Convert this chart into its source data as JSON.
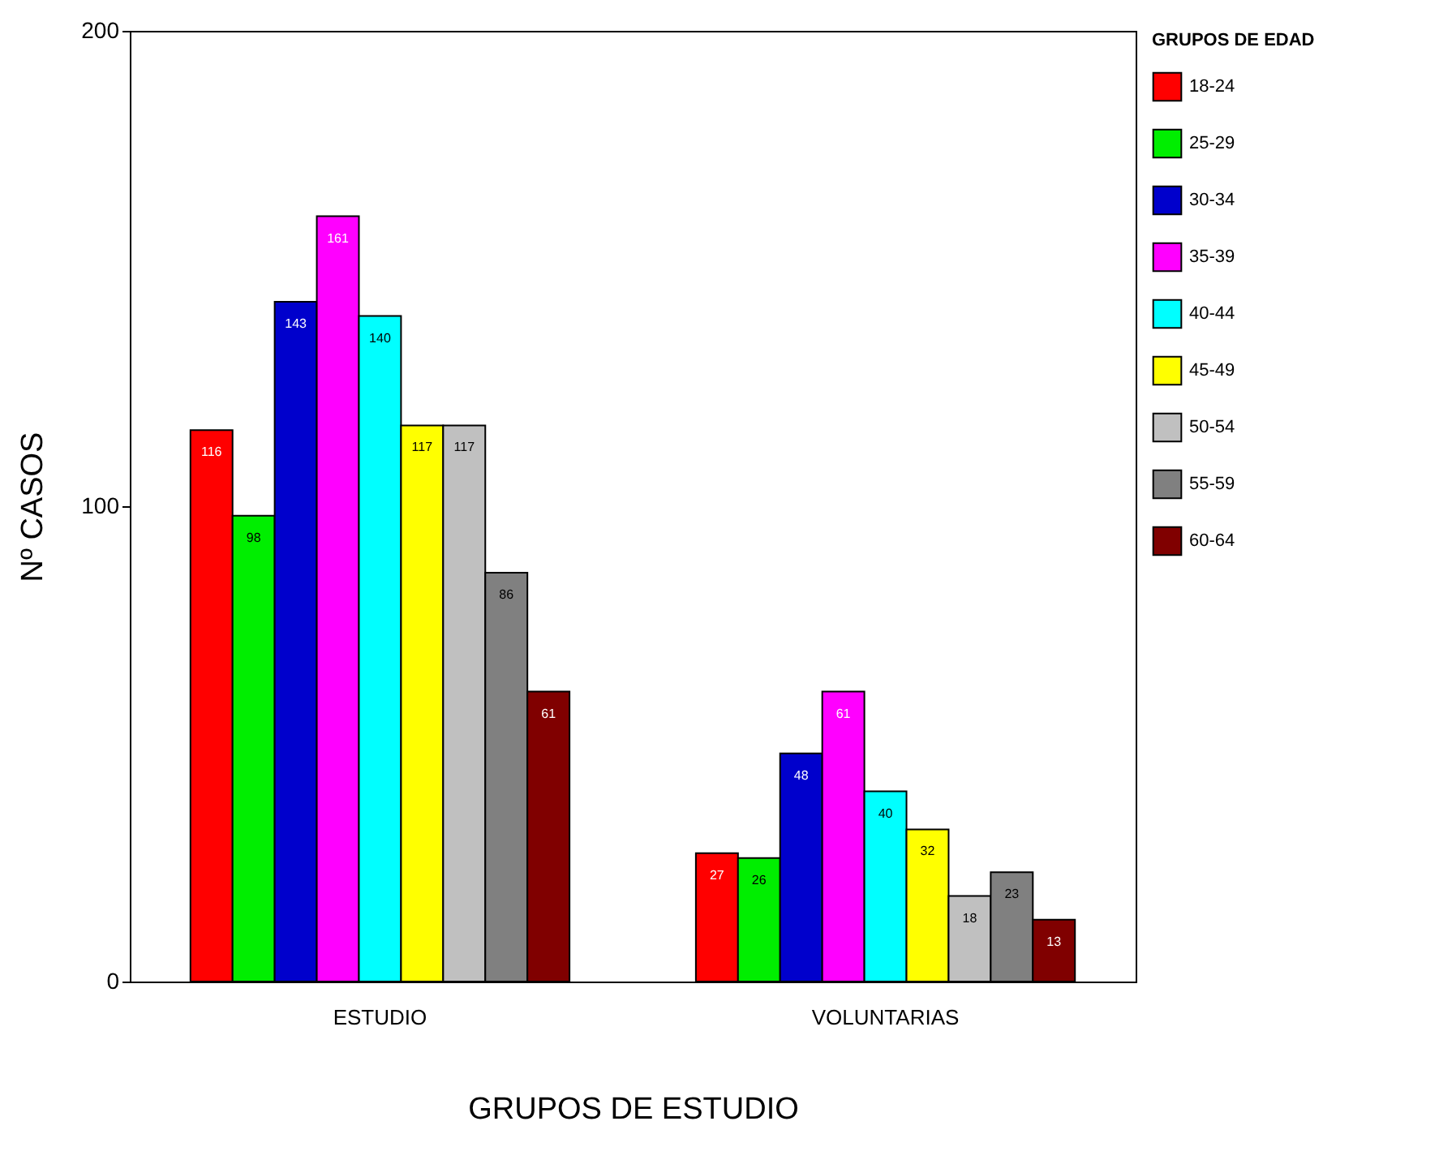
{
  "chart_data": {
    "type": "bar",
    "xlabel": "GRUPOS DE ESTUDIO",
    "ylabel": "Nº CASOS",
    "legend_title": "GRUPOS DE EDAD",
    "legend": "right",
    "data_labels": true,
    "categories": [
      "ESTUDIO",
      "VOLUNTARIAS"
    ],
    "ylim": [
      0,
      200
    ],
    "yticks": [
      0,
      100,
      200
    ],
    "series": [
      {
        "name": "18-24",
        "color": "#ff0000",
        "values": [
          116,
          27
        ]
      },
      {
        "name": "25-29",
        "color": "#00ee00",
        "values": [
          98,
          26
        ]
      },
      {
        "name": "30-34",
        "color": "#0000cc",
        "values": [
          143,
          48
        ]
      },
      {
        "name": "35-39",
        "color": "#ff00ff",
        "values": [
          161,
          61
        ]
      },
      {
        "name": "40-44",
        "color": "#00ffff",
        "values": [
          140,
          40
        ]
      },
      {
        "name": "45-49",
        "color": "#ffff00",
        "values": [
          117,
          32
        ]
      },
      {
        "name": "50-54",
        "color": "#c0c0c0",
        "values": [
          117,
          18
        ]
      },
      {
        "name": "55-59",
        "color": "#808080",
        "values": [
          86,
          23
        ]
      },
      {
        "name": "60-64",
        "color": "#800000",
        "values": [
          61,
          13
        ]
      }
    ]
  }
}
